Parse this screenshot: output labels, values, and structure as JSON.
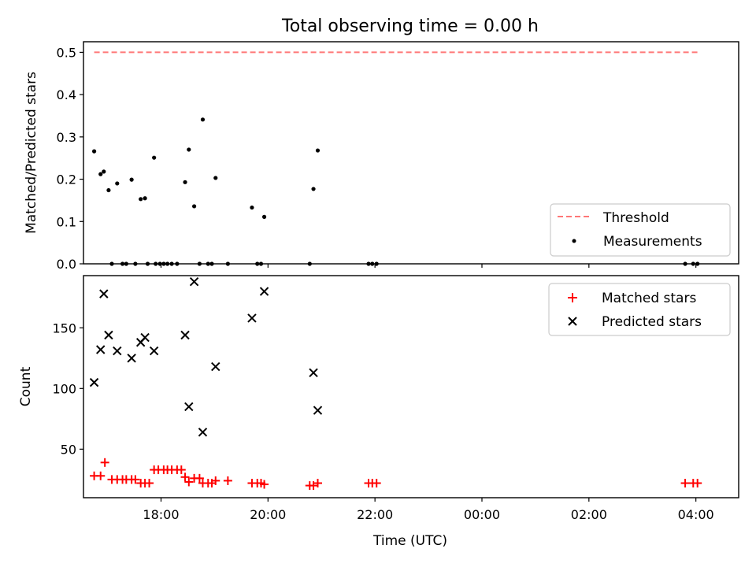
{
  "figure_title": "Total observing time = 0.00 h",
  "chart_data": [
    {
      "type": "scatter",
      "title": "Total observing time = 0.00 h",
      "xlabel": "",
      "ylabel": "Matched/Predicted stars",
      "xlim": [
        16.55,
        28.8
      ],
      "ylim": [
        0,
        0.525
      ],
      "xticks": [
        18,
        20,
        22,
        24,
        26,
        28
      ],
      "xtick_labels_visible": false,
      "yticks": [
        0.0,
        0.1,
        0.2,
        0.3,
        0.4,
        0.5
      ],
      "ytick_labels": [
        "0.0",
        "0.1",
        "0.2",
        "0.3",
        "0.4",
        "0.5"
      ],
      "legend_position": "lower-right",
      "threshold": {
        "name": "Threshold",
        "y": 0.5,
        "x": [
          16.75,
          28.05
        ],
        "color": "#ff7777",
        "style": "dashed"
      },
      "series": [
        {
          "name": "Measurements",
          "color": "#000000",
          "marker": "dot",
          "points": [
            [
              16.75,
              0.266
            ],
            [
              16.87,
              0.212
            ],
            [
              16.93,
              0.218
            ],
            [
              17.02,
              0.174
            ],
            [
              17.08,
              0.0
            ],
            [
              17.18,
              0.19
            ],
            [
              17.28,
              0.0
            ],
            [
              17.35,
              0.0
            ],
            [
              17.45,
              0.199
            ],
            [
              17.52,
              0.0
            ],
            [
              17.62,
              0.153
            ],
            [
              17.7,
              0.155
            ],
            [
              17.75,
              0.0
            ],
            [
              17.87,
              0.251
            ],
            [
              17.9,
              0.0
            ],
            [
              17.98,
              0.0
            ],
            [
              18.05,
              0.0
            ],
            [
              18.12,
              0.0
            ],
            [
              18.2,
              0.0
            ],
            [
              18.3,
              0.0
            ],
            [
              18.45,
              0.193
            ],
            [
              18.52,
              0.27
            ],
            [
              18.62,
              0.136
            ],
            [
              18.72,
              0.0
            ],
            [
              18.78,
              0.341
            ],
            [
              18.88,
              0.0
            ],
            [
              18.95,
              0.0
            ],
            [
              19.02,
              0.203
            ],
            [
              19.25,
              0.0
            ],
            [
              19.7,
              0.133
            ],
            [
              19.8,
              0.0
            ],
            [
              19.87,
              0.0
            ],
            [
              19.93,
              0.111
            ],
            [
              20.78,
              0.0
            ],
            [
              20.85,
              0.177
            ],
            [
              20.93,
              0.268
            ],
            [
              21.88,
              0.0
            ],
            [
              21.95,
              0.0
            ],
            [
              22.03,
              0.0
            ],
            [
              27.8,
              0.0
            ],
            [
              27.95,
              0.0
            ],
            [
              28.03,
              0.0
            ]
          ]
        }
      ]
    },
    {
      "type": "scatter",
      "title": "",
      "xlabel": "Time (UTC)",
      "ylabel": "Count",
      "xlim": [
        16.55,
        28.8
      ],
      "ylim": [
        10,
        193
      ],
      "xticks": [
        18,
        20,
        22,
        24,
        26,
        28
      ],
      "xtick_labels": [
        "18:00",
        "20:00",
        "22:00",
        "00:00",
        "02:00",
        "04:00"
      ],
      "yticks": [
        50,
        100,
        150
      ],
      "ytick_labels": [
        "50",
        "100",
        "150"
      ],
      "legend_position": "top-right",
      "series": [
        {
          "name": "Matched stars",
          "color": "#ff0000",
          "marker": "plus",
          "points": [
            [
              16.75,
              28
            ],
            [
              16.87,
              28
            ],
            [
              16.95,
              39
            ],
            [
              17.08,
              25
            ],
            [
              17.18,
              25
            ],
            [
              17.28,
              25
            ],
            [
              17.35,
              25
            ],
            [
              17.45,
              25
            ],
            [
              17.52,
              25
            ],
            [
              17.62,
              22
            ],
            [
              17.7,
              22
            ],
            [
              17.78,
              22
            ],
            [
              17.87,
              33
            ],
            [
              17.95,
              33
            ],
            [
              18.05,
              33
            ],
            [
              18.12,
              33
            ],
            [
              18.2,
              33
            ],
            [
              18.3,
              33
            ],
            [
              18.38,
              33
            ],
            [
              18.45,
              27
            ],
            [
              18.52,
              23
            ],
            [
              18.62,
              26
            ],
            [
              18.72,
              26
            ],
            [
              18.78,
              22
            ],
            [
              18.88,
              22
            ],
            [
              18.95,
              22
            ],
            [
              19.02,
              24
            ],
            [
              19.25,
              24
            ],
            [
              19.7,
              22
            ],
            [
              19.8,
              22
            ],
            [
              19.87,
              22
            ],
            [
              19.93,
              21
            ],
            [
              20.78,
              20
            ],
            [
              20.85,
              20
            ],
            [
              20.93,
              22
            ],
            [
              21.88,
              22
            ],
            [
              21.95,
              22
            ],
            [
              22.03,
              22
            ],
            [
              27.8,
              22
            ],
            [
              27.95,
              22
            ],
            [
              28.03,
              22
            ]
          ]
        },
        {
          "name": "Predicted stars",
          "color": "#000000",
          "marker": "x",
          "points": [
            [
              16.75,
              105
            ],
            [
              16.87,
              132
            ],
            [
              16.93,
              178
            ],
            [
              17.02,
              144
            ],
            [
              17.18,
              131
            ],
            [
              17.45,
              125
            ],
            [
              17.62,
              138
            ],
            [
              17.7,
              142
            ],
            [
              17.87,
              131
            ],
            [
              18.45,
              144
            ],
            [
              18.52,
              85
            ],
            [
              18.62,
              188
            ],
            [
              18.78,
              64
            ],
            [
              19.02,
              118
            ],
            [
              19.7,
              158
            ],
            [
              19.93,
              180
            ],
            [
              20.85,
              113
            ],
            [
              20.93,
              82
            ]
          ]
        }
      ]
    }
  ]
}
